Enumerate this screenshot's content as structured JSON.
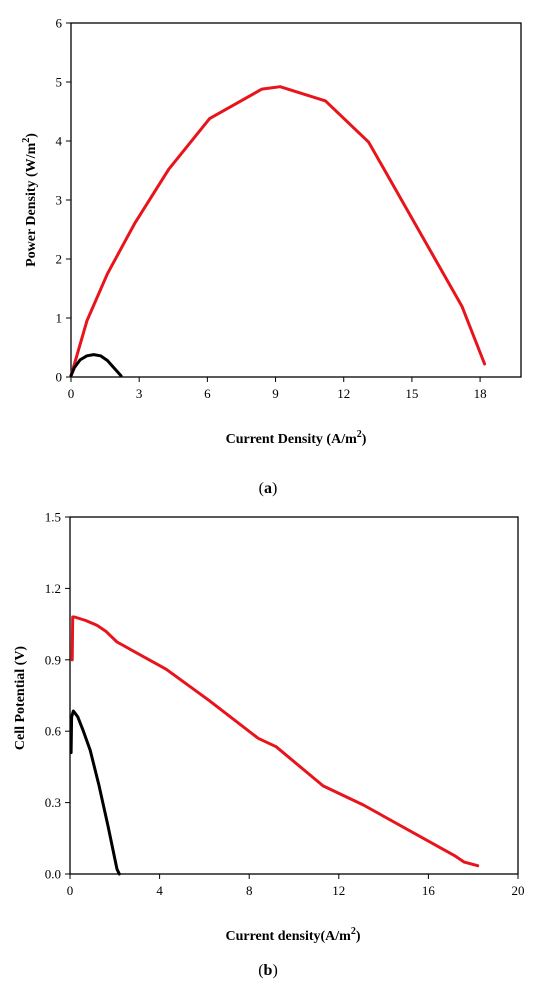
{
  "chart_data": [
    {
      "type": "line",
      "panel_label": "a",
      "xlabel": "Current Density (A/m",
      "xlabel_sup": "2",
      "xlabel_end": ")",
      "ylabel": "Power Density (W/m",
      "ylabel_sup": "2",
      "ylabel_end": ")",
      "xlim": [
        0,
        19.8
      ],
      "ylim": [
        0,
        6
      ],
      "xticks": [
        0,
        3,
        6,
        9,
        12,
        15,
        18
      ],
      "yticks": [
        0,
        1,
        2,
        3,
        4,
        5,
        6
      ],
      "grid": false,
      "series": [
        {
          "color": "#e8141c",
          "x": [
            0,
            0.7,
            1.6,
            2.8,
            4.3,
            6.1,
            8.4,
            9.2,
            11.2,
            13.1,
            17.2,
            18.2
          ],
          "y": [
            0.02,
            0.95,
            1.75,
            2.6,
            3.52,
            4.38,
            4.88,
            4.92,
            4.68,
            3.98,
            1.2,
            0.22
          ]
        },
        {
          "color": "#000000",
          "x": [
            0,
            0.15,
            0.4,
            0.7,
            1.0,
            1.3,
            1.6,
            1.9,
            2.2
          ],
          "y": [
            0.02,
            0.16,
            0.29,
            0.36,
            0.38,
            0.36,
            0.28,
            0.15,
            0.02
          ]
        }
      ]
    },
    {
      "type": "line",
      "panel_label": "b",
      "xlabel": "Current density(A/m",
      "xlabel_sup": "2",
      "xlabel_end": ")",
      "ylabel": "Cell Potential (V)",
      "xlim": [
        0,
        20
      ],
      "ylim": [
        0,
        1.5
      ],
      "xticks": [
        0,
        4,
        8,
        12,
        16,
        20
      ],
      "yticks": [
        0.0,
        0.3,
        0.6,
        0.9,
        1.2,
        1.5
      ],
      "ytick_labels": [
        "0.0",
        "0.3",
        "0.6",
        "0.9",
        "1.2",
        "1.5"
      ],
      "grid": false,
      "series": [
        {
          "color": "#e8141c",
          "x": [
            0.1,
            0.12,
            0.2,
            0.7,
            1.2,
            1.6,
            2.1,
            4.3,
            6.2,
            8.4,
            9.2,
            11.3,
            13.1,
            17.2,
            17.6,
            18.2
          ],
          "y": [
            0.9,
            1.08,
            1.08,
            1.065,
            1.045,
            1.02,
            0.975,
            0.86,
            0.73,
            0.57,
            0.535,
            0.37,
            0.29,
            0.075,
            0.05,
            0.035
          ]
        },
        {
          "color": "#000000",
          "x": [
            0.05,
            0.07,
            0.15,
            0.35,
            0.6,
            0.9,
            1.3,
            1.7,
            2.1,
            2.2
          ],
          "y": [
            0.51,
            0.66,
            0.685,
            0.66,
            0.6,
            0.52,
            0.37,
            0.2,
            0.02,
            0.0
          ]
        }
      ]
    }
  ]
}
